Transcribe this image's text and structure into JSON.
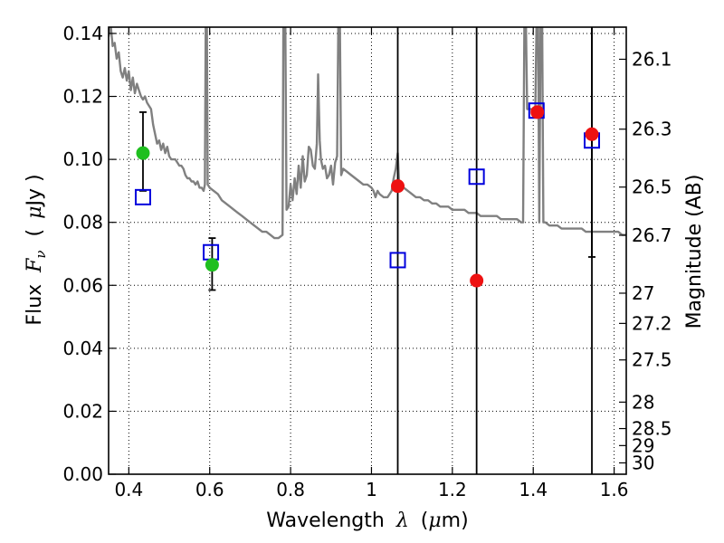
{
  "chart_data": {
    "type": "scatter",
    "title": "",
    "xlabel": "Wavelength",
    "xlabel_symbol": "λ",
    "xlabel_unit_open": "(",
    "xlabel_unit_mu": "μ",
    "xlabel_unit_rest": "m)",
    "ylabel": "Flux",
    "ylabel_symbol": "F",
    "ylabel_subscript": "ν",
    "ylabel_unit_open": "(",
    "ylabel_unit_mu": "μ",
    "ylabel_unit_rest": "Jy )",
    "y2label": "Magnitude (AB)",
    "xlim": [
      0.35,
      1.63
    ],
    "ylim": [
      0.0,
      0.142
    ],
    "grid": true,
    "xticks": [
      0.4,
      0.6,
      0.8,
      1.0,
      1.2,
      1.4,
      1.6
    ],
    "xtick_labels": [
      "0.4",
      "0.6",
      "0.8",
      "1",
      "1.2",
      "1.4",
      "1.6"
    ],
    "yticks": [
      0.0,
      0.02,
      0.04,
      0.06,
      0.08,
      0.1,
      0.12,
      0.14
    ],
    "ytick_labels": [
      "0.00",
      "0.02",
      "0.04",
      "0.06",
      "0.08",
      "0.10",
      "0.12",
      "0.14"
    ],
    "y2ticks": [
      {
        "flux": 0.1318,
        "label": "26.1"
      },
      {
        "flux": 0.1096,
        "label": "26.3"
      },
      {
        "flux": 0.0912,
        "label": "26.5"
      },
      {
        "flux": 0.0759,
        "label": "26.7"
      },
      {
        "flux": 0.0575,
        "label": "27"
      },
      {
        "flux": 0.0479,
        "label": "27.2"
      },
      {
        "flux": 0.0363,
        "label": "27.5"
      },
      {
        "flux": 0.0229,
        "label": "28"
      },
      {
        "flux": 0.0145,
        "label": "28.5"
      },
      {
        "flux": 0.0091,
        "label": "29"
      },
      {
        "flux": 0.0036,
        "label": "30"
      }
    ],
    "colors": {
      "model": "#808080",
      "green": "#1fbf1f",
      "red": "#ee1111",
      "square": "#0000dd",
      "errorbar": "#000000"
    },
    "model_spectrum": [
      [
        0.35,
        0.139
      ],
      [
        0.355,
        0.143
      ],
      [
        0.36,
        0.136
      ],
      [
        0.365,
        0.137
      ],
      [
        0.37,
        0.132
      ],
      [
        0.375,
        0.134
      ],
      [
        0.38,
        0.128
      ],
      [
        0.385,
        0.126
      ],
      [
        0.39,
        0.129
      ],
      [
        0.395,
        0.125
      ],
      [
        0.4,
        0.128
      ],
      [
        0.405,
        0.122
      ],
      [
        0.41,
        0.126
      ],
      [
        0.415,
        0.121
      ],
      [
        0.42,
        0.124
      ],
      [
        0.425,
        0.122
      ],
      [
        0.43,
        0.12
      ],
      [
        0.435,
        0.119
      ],
      [
        0.44,
        0.12
      ],
      [
        0.445,
        0.118
      ],
      [
        0.45,
        0.117
      ],
      [
        0.455,
        0.116
      ],
      [
        0.46,
        0.111
      ],
      [
        0.465,
        0.108
      ],
      [
        0.47,
        0.105
      ],
      [
        0.475,
        0.106
      ],
      [
        0.48,
        0.103
      ],
      [
        0.485,
        0.105
      ],
      [
        0.49,
        0.102
      ],
      [
        0.495,
        0.104
      ],
      [
        0.5,
        0.101
      ],
      [
        0.505,
        0.1
      ],
      [
        0.51,
        0.1
      ],
      [
        0.515,
        0.1
      ],
      [
        0.52,
        0.099
      ],
      [
        0.525,
        0.098
      ],
      [
        0.53,
        0.098
      ],
      [
        0.535,
        0.097
      ],
      [
        0.54,
        0.095
      ],
      [
        0.545,
        0.094
      ],
      [
        0.55,
        0.094
      ],
      [
        0.555,
        0.093
      ],
      [
        0.56,
        0.093
      ],
      [
        0.565,
        0.092
      ],
      [
        0.57,
        0.093
      ],
      [
        0.575,
        0.091
      ],
      [
        0.58,
        0.091
      ],
      [
        0.585,
        0.09
      ],
      [
        0.588,
        0.092
      ],
      [
        0.59,
        0.142
      ],
      [
        0.593,
        0.142
      ],
      [
        0.595,
        0.092
      ],
      [
        0.6,
        0.091
      ],
      [
        0.61,
        0.09
      ],
      [
        0.62,
        0.089
      ],
      [
        0.63,
        0.087
      ],
      [
        0.64,
        0.086
      ],
      [
        0.65,
        0.085
      ],
      [
        0.66,
        0.084
      ],
      [
        0.67,
        0.083
      ],
      [
        0.68,
        0.082
      ],
      [
        0.69,
        0.081
      ],
      [
        0.7,
        0.08
      ],
      [
        0.71,
        0.079
      ],
      [
        0.72,
        0.078
      ],
      [
        0.73,
        0.077
      ],
      [
        0.74,
        0.077
      ],
      [
        0.75,
        0.076
      ],
      [
        0.76,
        0.075
      ],
      [
        0.77,
        0.075
      ],
      [
        0.78,
        0.076
      ],
      [
        0.782,
        0.142
      ],
      [
        0.787,
        0.142
      ],
      [
        0.79,
        0.084
      ],
      [
        0.795,
        0.085
      ],
      [
        0.8,
        0.092
      ],
      [
        0.805,
        0.087
      ],
      [
        0.81,
        0.094
      ],
      [
        0.815,
        0.089
      ],
      [
        0.82,
        0.098
      ],
      [
        0.825,
        0.091
      ],
      [
        0.83,
        0.101
      ],
      [
        0.835,
        0.093
      ],
      [
        0.84,
        0.095
      ],
      [
        0.845,
        0.104
      ],
      [
        0.85,
        0.103
      ],
      [
        0.855,
        0.098
      ],
      [
        0.86,
        0.097
      ],
      [
        0.865,
        0.105
      ],
      [
        0.868,
        0.127
      ],
      [
        0.872,
        0.106
      ],
      [
        0.875,
        0.1
      ],
      [
        0.88,
        0.097
      ],
      [
        0.885,
        0.098
      ],
      [
        0.89,
        0.094
      ],
      [
        0.895,
        0.095
      ],
      [
        0.9,
        0.098
      ],
      [
        0.905,
        0.092
      ],
      [
        0.91,
        0.099
      ],
      [
        0.915,
        0.101
      ],
      [
        0.918,
        0.142
      ],
      [
        0.922,
        0.142
      ],
      [
        0.925,
        0.095
      ],
      [
        0.93,
        0.097
      ],
      [
        0.94,
        0.096
      ],
      [
        0.95,
        0.095
      ],
      [
        0.96,
        0.094
      ],
      [
        0.97,
        0.093
      ],
      [
        0.98,
        0.092
      ],
      [
        0.99,
        0.092
      ],
      [
        1.0,
        0.091
      ],
      [
        1.005,
        0.09
      ],
      [
        1.01,
        0.088
      ],
      [
        1.015,
        0.09
      ],
      [
        1.02,
        0.089
      ],
      [
        1.03,
        0.088
      ],
      [
        1.04,
        0.088
      ],
      [
        1.05,
        0.09
      ],
      [
        1.055,
        0.094
      ],
      [
        1.06,
        0.097
      ],
      [
        1.065,
        0.102
      ],
      [
        1.068,
        0.093
      ],
      [
        1.07,
        0.092
      ],
      [
        1.08,
        0.091
      ],
      [
        1.09,
        0.09
      ],
      [
        1.1,
        0.089
      ],
      [
        1.11,
        0.088
      ],
      [
        1.12,
        0.088
      ],
      [
        1.13,
        0.087
      ],
      [
        1.14,
        0.087
      ],
      [
        1.15,
        0.086
      ],
      [
        1.16,
        0.086
      ],
      [
        1.17,
        0.085
      ],
      [
        1.18,
        0.085
      ],
      [
        1.19,
        0.085
      ],
      [
        1.2,
        0.084
      ],
      [
        1.21,
        0.084
      ],
      [
        1.22,
        0.084
      ],
      [
        1.23,
        0.084
      ],
      [
        1.24,
        0.083
      ],
      [
        1.25,
        0.083
      ],
      [
        1.26,
        0.083
      ],
      [
        1.27,
        0.082
      ],
      [
        1.28,
        0.082
      ],
      [
        1.29,
        0.082
      ],
      [
        1.3,
        0.082
      ],
      [
        1.31,
        0.082
      ],
      [
        1.32,
        0.081
      ],
      [
        1.33,
        0.081
      ],
      [
        1.34,
        0.081
      ],
      [
        1.35,
        0.081
      ],
      [
        1.36,
        0.081
      ],
      [
        1.37,
        0.08
      ],
      [
        1.375,
        0.08
      ],
      [
        1.378,
        0.142
      ],
      [
        1.382,
        0.142
      ],
      [
        1.385,
        0.116
      ],
      [
        1.39,
        0.116
      ],
      [
        1.395,
        0.116
      ],
      [
        1.4,
        0.115
      ],
      [
        1.405,
        0.116
      ],
      [
        1.408,
        0.142
      ],
      [
        1.412,
        0.142
      ],
      [
        1.415,
        0.08
      ],
      [
        1.418,
        0.142
      ],
      [
        1.422,
        0.142
      ],
      [
        1.425,
        0.08
      ],
      [
        1.43,
        0.08
      ],
      [
        1.44,
        0.079
      ],
      [
        1.45,
        0.079
      ],
      [
        1.46,
        0.079
      ],
      [
        1.47,
        0.078
      ],
      [
        1.48,
        0.078
      ],
      [
        1.49,
        0.078
      ],
      [
        1.5,
        0.078
      ],
      [
        1.51,
        0.078
      ],
      [
        1.52,
        0.078
      ],
      [
        1.53,
        0.077
      ],
      [
        1.54,
        0.077
      ],
      [
        1.55,
        0.077
      ],
      [
        1.56,
        0.077
      ],
      [
        1.57,
        0.077
      ],
      [
        1.58,
        0.077
      ],
      [
        1.59,
        0.077
      ],
      [
        1.6,
        0.077
      ],
      [
        1.61,
        0.077
      ],
      [
        1.62,
        0.076
      ],
      [
        1.63,
        0.076
      ]
    ],
    "green_points": [
      {
        "x": 0.435,
        "y": 0.102,
        "err_low": 0.09,
        "err_high": 0.115
      },
      {
        "x": 0.606,
        "y": 0.0665,
        "err_low": 0.0585,
        "err_high": 0.075
      }
    ],
    "red_points": [
      {
        "x": 1.065,
        "y": 0.0915
      },
      {
        "x": 1.26,
        "y": 0.0615
      },
      {
        "x": 1.41,
        "y": 0.115
      },
      {
        "x": 1.545,
        "y": 0.108,
        "err_low": 0.069,
        "err_high": 0.142
      }
    ],
    "model_squares": [
      {
        "x": 0.435,
        "y": 0.088
      },
      {
        "x": 0.603,
        "y": 0.0705
      },
      {
        "x": 1.065,
        "y": 0.068
      },
      {
        "x": 1.26,
        "y": 0.0945
      },
      {
        "x": 1.408,
        "y": 0.1155
      },
      {
        "x": 1.545,
        "y": 0.106
      }
    ],
    "vertical_lines": [
      1.065,
      1.26,
      1.545
    ]
  }
}
